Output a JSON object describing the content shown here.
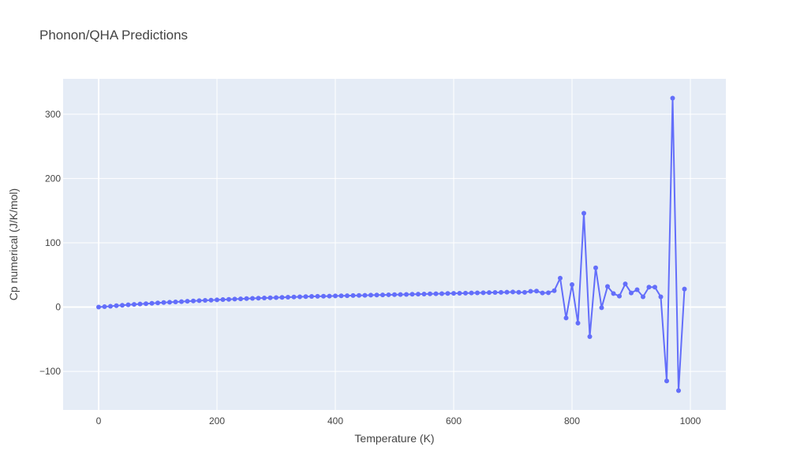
{
  "chart_data": {
    "type": "line",
    "title": "Phonon/QHA Predictions",
    "xlabel": "Temperature (K)",
    "ylabel": "Cp numerical (J/K/mol)",
    "xlim": [
      -60,
      1060
    ],
    "ylim": [
      -160,
      355
    ],
    "xticks": [
      0,
      200,
      400,
      600,
      800,
      1000
    ],
    "yticks": [
      -100,
      0,
      100,
      200,
      300
    ],
    "ytick_labels": [
      "−100",
      "0",
      "100",
      "200",
      "300"
    ],
    "grid": true,
    "colors": {
      "plot_bg": "#E5ECF6",
      "grid": "#ffffff",
      "line": "#636EFA"
    },
    "series": [
      {
        "mode": "lines+markers",
        "x": [
          0,
          10,
          20,
          30,
          40,
          50,
          60,
          70,
          80,
          90,
          100,
          110,
          120,
          130,
          140,
          150,
          160,
          170,
          180,
          190,
          200,
          210,
          220,
          230,
          240,
          250,
          260,
          270,
          280,
          290,
          300,
          310,
          320,
          330,
          340,
          350,
          360,
          370,
          380,
          390,
          400,
          410,
          420,
          430,
          440,
          450,
          460,
          470,
          480,
          490,
          500,
          510,
          520,
          530,
          540,
          550,
          560,
          570,
          580,
          590,
          600,
          610,
          620,
          630,
          640,
          650,
          660,
          670,
          680,
          690,
          700,
          710,
          720,
          730,
          740,
          750,
          760,
          770,
          780,
          790,
          800,
          810,
          820,
          830,
          840,
          850,
          860,
          870,
          880,
          890,
          900,
          910,
          920,
          930,
          940,
          950,
          960,
          970,
          980,
          990
        ],
        "y": [
          0,
          0.6,
          1.3,
          2.1,
          2.8,
          3.5,
          4.1,
          4.7,
          5.3,
          5.9,
          6.5,
          7.0,
          7.5,
          8.0,
          8.5,
          9.0,
          9.5,
          10.0,
          10.4,
          10.8,
          11.2,
          11.6,
          12.0,
          12.4,
          12.8,
          13.2,
          13.5,
          13.8,
          14.1,
          14.4,
          14.7,
          15.0,
          15.3,
          15.6,
          15.9,
          16.2,
          16.5,
          16.7,
          16.9,
          17.1,
          17.3,
          17.5,
          17.7,
          17.9,
          18.1,
          18.3,
          18.5,
          18.7,
          18.9,
          19.1,
          19.3,
          19.5,
          19.7,
          19.9,
          20.1,
          20.3,
          20.5,
          20.7,
          20.9,
          21.1,
          21.3,
          21.5,
          21.7,
          21.9,
          22.1,
          22.3,
          22.5,
          22.7,
          22.9,
          23.1,
          23.5,
          23.0,
          22.8,
          24.5,
          24.8,
          22.0,
          22.3,
          25.5,
          45.0,
          -17.0,
          35.0,
          -25.0,
          146.0,
          -46.0,
          61.0,
          -1.0,
          32.0,
          21.0,
          17.0,
          36.0,
          22.0,
          27.0,
          16.0,
          31.0,
          31.0,
          16.0,
          -115.0,
          325.0,
          -130.0,
          28.0
        ]
      }
    ]
  }
}
